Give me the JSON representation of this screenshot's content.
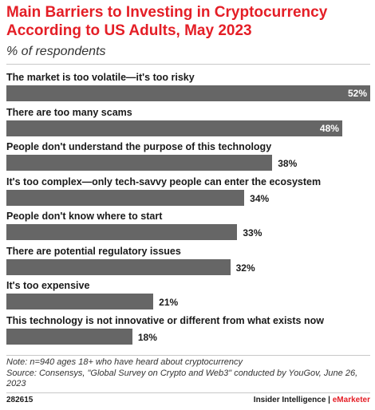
{
  "chart_data": {
    "type": "bar",
    "orientation": "horizontal",
    "title": "Main Barriers to Investing in Cryptocurrency According to US Adults, May 2023",
    "subtitle": "% of respondents",
    "categories": [
      "The market is too volatile—it's too risky",
      "There are too many scams",
      "People don't understand the purpose of this technology",
      "It's too complex—only tech-savvy people can enter the ecosystem",
      "People don't know where to start",
      "There are potential regulatory issues",
      "It's too expensive",
      "This technology is not innovative or different from what exists now"
    ],
    "values": [
      52,
      48,
      38,
      34,
      33,
      32,
      21,
      18
    ],
    "value_labels": [
      "52%",
      "48%",
      "38%",
      "34%",
      "33%",
      "32%",
      "21%",
      "18%"
    ],
    "bar_color": "#666666",
    "grid": false,
    "legend": "none"
  },
  "note": "Note: n=940 ages 18+ who have heard about cryptocurrency",
  "source": "Source: Consensys, \"Global Survey on Crypto and Web3\" conducted by YouGov, June 26, 2023",
  "footer": {
    "id": "282615",
    "brand_left": "Insider Intelligence | ",
    "brand_right": "eMarketer"
  },
  "colors": {
    "title": "#e41e26",
    "bar": "#666666",
    "accent": "#e41e26"
  }
}
